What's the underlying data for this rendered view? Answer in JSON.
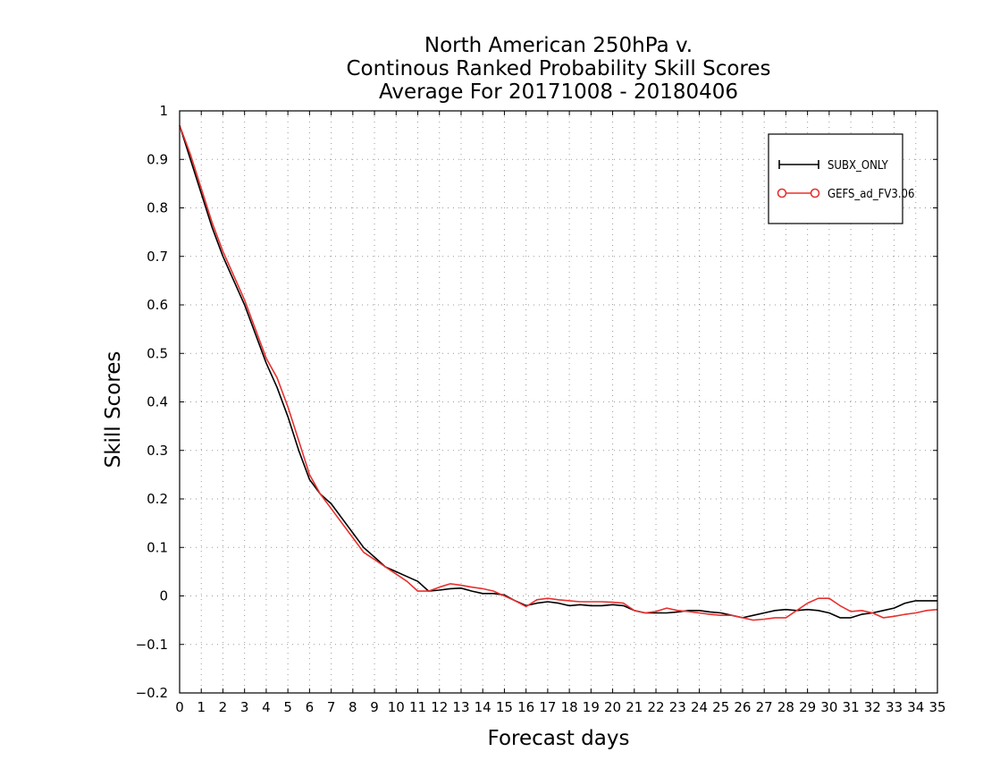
{
  "chart_data": {
    "type": "line",
    "title_lines": [
      "North American 250hPa v.",
      "Continous Ranked Probability Skill Scores",
      "Average For 20171008 - 20180406"
    ],
    "xlabel": "Forecast days",
    "ylabel": "Skill Scores",
    "xlim": [
      0,
      35
    ],
    "ylim": [
      -0.2,
      1
    ],
    "x_ticks": [
      0,
      1,
      2,
      3,
      4,
      5,
      6,
      7,
      8,
      9,
      10,
      11,
      12,
      13,
      14,
      15,
      16,
      17,
      18,
      19,
      20,
      21,
      22,
      23,
      24,
      25,
      26,
      27,
      28,
      29,
      30,
      31,
      32,
      33,
      34,
      35
    ],
    "y_ticks": [
      -0.2,
      -0.1,
      0,
      0.1,
      0.2,
      0.3,
      0.4,
      0.5,
      0.6,
      0.7,
      0.8,
      0.9,
      1
    ],
    "y_tick_labels": [
      "−0.2",
      "−0.1",
      "0",
      "0.1",
      "0.2",
      "0.3",
      "0.4",
      "0.5",
      "0.6",
      "0.7",
      "0.8",
      "0.9",
      "1"
    ],
    "grid": true,
    "legend_position": "top-right",
    "series": [
      {
        "name": "SUBX_ONLY",
        "color": "#000000",
        "marker": "plus",
        "x": [
          0,
          0.5,
          1,
          1.5,
          2,
          2.5,
          3,
          3.5,
          4,
          4.5,
          5,
          5.5,
          6,
          6.5,
          7,
          7.5,
          8,
          8.5,
          9,
          9.5,
          10,
          10.5,
          11,
          11.5,
          12,
          12.5,
          13,
          13.5,
          14,
          14.5,
          15,
          15.5,
          16,
          16.5,
          17,
          17.5,
          18,
          18.5,
          19,
          19.5,
          20,
          20.5,
          21,
          21.5,
          22,
          22.5,
          23,
          23.5,
          24,
          24.5,
          25,
          25.5,
          26,
          26.5,
          27,
          27.5,
          28,
          28.5,
          29,
          29.5,
          30,
          30.5,
          31,
          31.5,
          32,
          32.5,
          33,
          33.5,
          34,
          34.5,
          35
        ],
        "y": [
          0.97,
          0.9,
          0.83,
          0.76,
          0.7,
          0.65,
          0.6,
          0.54,
          0.48,
          0.43,
          0.37,
          0.3,
          0.24,
          0.21,
          0.19,
          0.16,
          0.13,
          0.1,
          0.08,
          0.06,
          0.05,
          0.04,
          0.03,
          0.01,
          0.012,
          0.015,
          0.016,
          0.01,
          0.005,
          0.005,
          0.002,
          -0.01,
          -0.02,
          -0.015,
          -0.012,
          -0.015,
          -0.02,
          -0.018,
          -0.02,
          -0.02,
          -0.018,
          -0.02,
          -0.03,
          -0.035,
          -0.035,
          -0.035,
          -0.033,
          -0.03,
          -0.03,
          -0.033,
          -0.035,
          -0.04,
          -0.045,
          -0.04,
          -0.035,
          -0.03,
          -0.028,
          -0.03,
          -0.028,
          -0.03,
          -0.035,
          -0.045,
          -0.045,
          -0.038,
          -0.035,
          -0.03,
          -0.025,
          -0.015,
          -0.01,
          -0.01,
          -0.01
        ]
      },
      {
        "name": "GEFS_ad_FV3.06",
        "color": "#e8302e",
        "marker": "circle",
        "x": [
          0,
          0.5,
          1,
          1.5,
          2,
          2.5,
          3,
          3.5,
          4,
          4.5,
          5,
          5.5,
          6,
          6.5,
          7,
          7.5,
          8,
          8.5,
          9,
          9.5,
          10,
          10.5,
          11,
          11.5,
          12,
          12.5,
          13,
          13.5,
          14,
          14.5,
          15,
          15.5,
          16,
          16.5,
          17,
          17.5,
          18,
          18.5,
          19,
          19.5,
          20,
          20.5,
          21,
          21.5,
          22,
          22.5,
          23,
          23.5,
          24,
          24.5,
          25,
          25.5,
          26,
          26.5,
          27,
          27.5,
          28,
          28.5,
          29,
          29.5,
          30,
          30.5,
          31,
          31.5,
          32,
          32.5,
          33,
          33.5,
          34,
          34.5,
          35
        ],
        "y": [
          0.97,
          0.91,
          0.84,
          0.77,
          0.71,
          0.66,
          0.61,
          0.55,
          0.49,
          0.45,
          0.39,
          0.32,
          0.25,
          0.21,
          0.18,
          0.15,
          0.12,
          0.09,
          0.075,
          0.06,
          0.045,
          0.03,
          0.01,
          0.01,
          0.018,
          0.025,
          0.022,
          0.018,
          0.015,
          0.01,
          0.0,
          -0.01,
          -0.022,
          -0.008,
          -0.005,
          -0.008,
          -0.01,
          -0.012,
          -0.012,
          -0.012,
          -0.013,
          -0.015,
          -0.03,
          -0.035,
          -0.032,
          -0.025,
          -0.03,
          -0.032,
          -0.035,
          -0.038,
          -0.04,
          -0.04,
          -0.045,
          -0.05,
          -0.048,
          -0.045,
          -0.045,
          -0.03,
          -0.015,
          -0.005,
          -0.005,
          -0.02,
          -0.032,
          -0.03,
          -0.035,
          -0.045,
          -0.042,
          -0.038,
          -0.035,
          -0.03,
          -0.028
        ]
      }
    ]
  }
}
